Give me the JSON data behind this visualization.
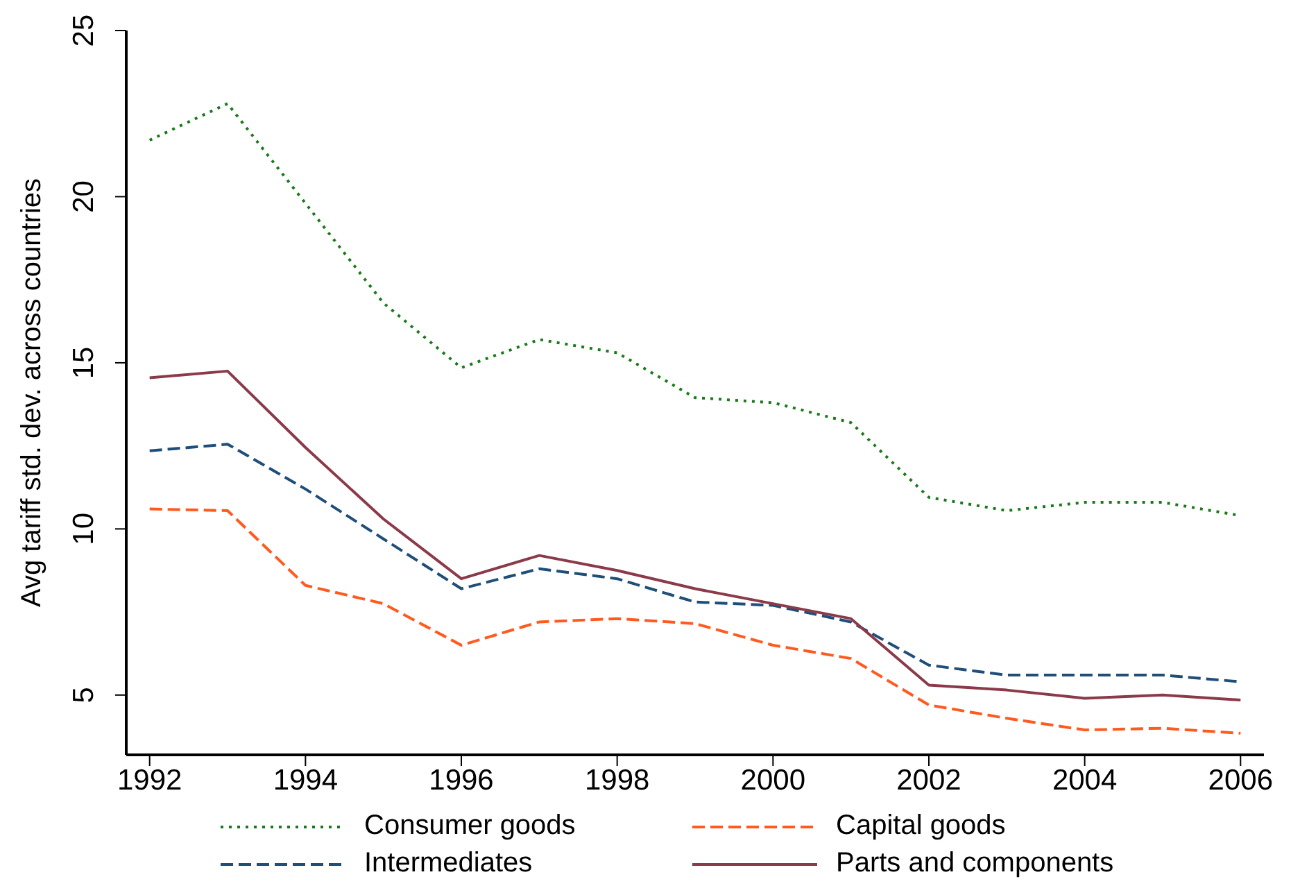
{
  "chart_data": {
    "type": "line",
    "ylabel": "Avg tariff std. dev. across countries",
    "x": [
      1992,
      1993,
      1994,
      1995,
      1996,
      1997,
      1998,
      1999,
      2000,
      2001,
      2002,
      2003,
      2004,
      2005,
      2006
    ],
    "series": [
      {
        "name": "Consumer goods",
        "color": "#1a7a1a",
        "line_style": "dotted",
        "values": [
          21.7,
          22.8,
          19.8,
          16.8,
          14.85,
          15.7,
          15.3,
          13.95,
          13.8,
          13.2,
          10.95,
          10.55,
          10.8,
          10.8,
          10.4
        ]
      },
      {
        "name": "Capital goods",
        "color": "#ff5a1f",
        "line_style": "dashed",
        "values": [
          10.6,
          10.55,
          8.3,
          7.75,
          6.5,
          7.2,
          7.3,
          7.15,
          6.5,
          6.1,
          4.7,
          4.3,
          3.95,
          4.0,
          3.85
        ]
      },
      {
        "name": "Intermediates",
        "color": "#1f4e79",
        "line_style": "dashed",
        "values": [
          12.35,
          12.55,
          11.2,
          9.7,
          8.2,
          8.8,
          8.5,
          7.8,
          7.7,
          7.2,
          5.9,
          5.6,
          5.6,
          5.6,
          5.4
        ]
      },
      {
        "name": "Parts and components",
        "color": "#8b3a4a",
        "line_style": "solid",
        "values": [
          14.55,
          14.75,
          12.45,
          10.3,
          8.5,
          9.2,
          8.75,
          8.2,
          7.75,
          7.3,
          5.3,
          5.15,
          4.9,
          5.0,
          4.85
        ]
      }
    ],
    "xlim": [
      1991.7,
      2006.3
    ],
    "xticks": [
      1992,
      1994,
      1996,
      1998,
      2000,
      2002,
      2004,
      2006
    ],
    "ylim": [
      3.2,
      25
    ],
    "yticks": [
      5,
      10,
      15,
      20,
      25
    ],
    "grid": false,
    "legend": "bottom",
    "marker": "none"
  }
}
